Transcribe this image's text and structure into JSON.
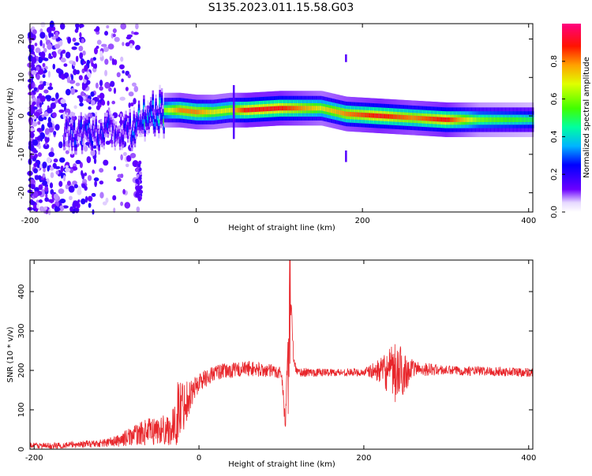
{
  "title": "S135.2023.011.15.58.G03",
  "colors": {
    "frame": "#000000",
    "snr_line": "#e8262b",
    "colorbar": [
      "#6c00ff",
      "#0000ff",
      "#00c8ff",
      "#00ff40",
      "#c8ff00",
      "#ffa000",
      "#ff0000",
      "#ff00a0"
    ]
  },
  "chart_data": [
    {
      "type": "heatmap",
      "title": "S135.2023.011.15.58.G03",
      "xlabel": "Height of straight line (km)",
      "ylabel": "Frequency (Hz)",
      "xlim": [
        -200,
        405
      ],
      "ylim": [
        -25,
        24
      ],
      "x_ticks": [
        -200,
        0,
        200,
        400
      ],
      "y_ticks": [
        -20,
        -10,
        0,
        10,
        20
      ],
      "colorbar": {
        "label": "Normalized spectral amplitude",
        "range": [
          0,
          1
        ],
        "ticks": [
          0.0,
          0.2,
          0.4,
          0.6,
          0.8
        ]
      },
      "ridge": {
        "x": [
          -80,
          -60,
          -40,
          -20,
          0,
          20,
          40,
          60,
          100,
          150,
          180,
          220,
          260,
          300,
          340,
          405
        ],
        "freq": [
          -4,
          0,
          1.5,
          1.5,
          1,
          1,
          1.5,
          1.5,
          2,
          2,
          0.5,
          0,
          -0.5,
          -1,
          -1,
          -1
        ],
        "peak_amplitude": [
          0.3,
          0.5,
          0.6,
          0.8,
          0.8,
          0.7,
          0.7,
          0.9,
          0.9,
          0.7,
          0.8,
          0.9,
          0.8,
          0.9,
          0.6,
          0.5
        ]
      },
      "grid": false
    },
    {
      "type": "line",
      "xlabel": "Height of straight line (km)",
      "ylabel": "SNR (10 * v/v)",
      "xlim": [
        -205,
        405
      ],
      "ylim": [
        0,
        480
      ],
      "x_ticks": [
        -200,
        0,
        200,
        400
      ],
      "y_ticks": [
        0,
        100,
        200,
        300,
        400
      ],
      "grid": false,
      "series": [
        {
          "x": [
            -205,
            -180,
            -150,
            -120,
            -100,
            -80,
            -60,
            -40,
            -30,
            -25,
            -20,
            -10,
            0,
            20,
            40,
            60,
            80,
            100,
            105,
            110,
            115,
            120,
            150,
            200,
            220,
            240,
            260,
            300,
            350,
            405
          ],
          "y": [
            10,
            8,
            12,
            15,
            20,
            35,
            45,
            50,
            55,
            100,
            110,
            140,
            170,
            195,
            200,
            205,
            200,
            195,
            60,
            460,
            220,
            195,
            195,
            195,
            200,
            190,
            205,
            200,
            198,
            195
          ],
          "spread": [
            8,
            8,
            8,
            10,
            15,
            25,
            35,
            40,
            50,
            90,
            70,
            40,
            25,
            20,
            20,
            20,
            18,
            18,
            25,
            20,
            15,
            12,
            10,
            10,
            30,
            85,
            20,
            12,
            12,
            12
          ]
        }
      ]
    }
  ]
}
